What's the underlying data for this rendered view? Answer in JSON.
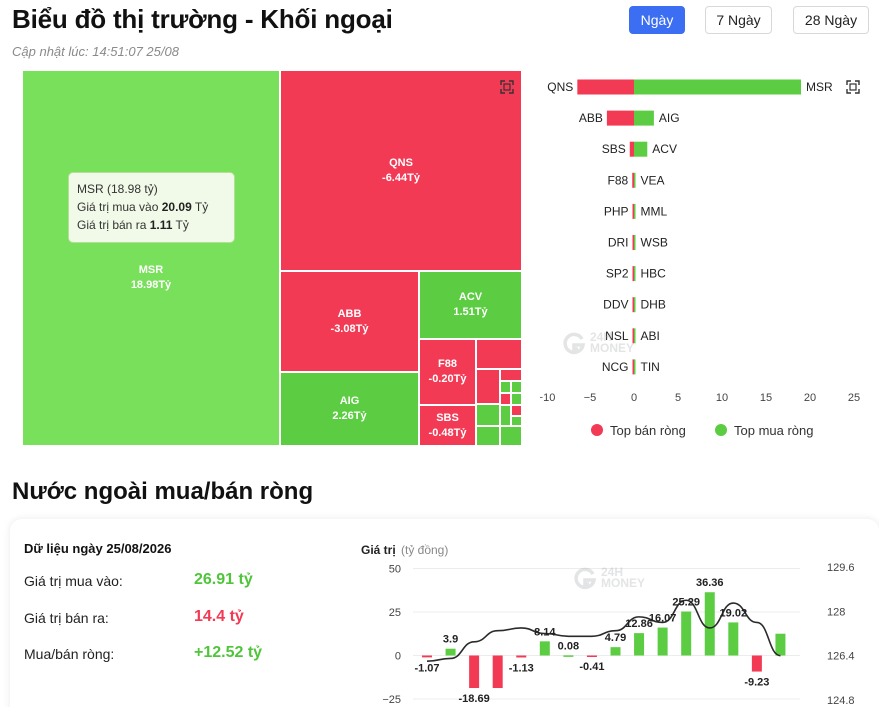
{
  "header": {
    "title": "Biểu đồ thị trường - Khối ngoại",
    "updated": "Cập nhật lúc: 14:51:07 25/08",
    "periods": [
      {
        "label": "Ngày",
        "active": true
      },
      {
        "label": "7 Ngày",
        "active": false
      },
      {
        "label": "28 Ngày",
        "active": false
      }
    ]
  },
  "watermark": {
    "line1": "24H",
    "line2": "MONEY"
  },
  "treemap": {
    "tiles": [
      {
        "code": "MSR",
        "value": "18.98Tỷ",
        "side": "buy"
      },
      {
        "code": "QNS",
        "value": "-6.44Tỷ",
        "side": "sell"
      },
      {
        "code": "ABB",
        "value": "-3.08Tỷ",
        "side": "sell"
      },
      {
        "code": "ACV",
        "value": "1.51Tỷ",
        "side": "buy"
      },
      {
        "code": "AIG",
        "value": "2.26Tỷ",
        "side": "buy"
      },
      {
        "code": "F88",
        "value": "-0.20Tỷ",
        "side": "sell"
      },
      {
        "code": "SBS",
        "value": "-0.48Tỷ",
        "side": "sell"
      }
    ],
    "tooltip": {
      "title": "MSR (18.98 tỷ)",
      "buy_label": "Giá trị mua vào",
      "buy_value": "20.09",
      "sell_label": "Giá trị bán ra",
      "sell_value": "1.11",
      "unit": "Tỷ"
    }
  },
  "chart_data": [
    {
      "type": "bar",
      "orientation": "horizontal",
      "sell_codes": [
        "QNS",
        "ABB",
        "SBS",
        "F88",
        "PHP",
        "DRI",
        "SP2",
        "DDV",
        "NSL",
        "NCG"
      ],
      "sell_values": [
        -6.44,
        -3.08,
        -0.48,
        -0.2,
        -0.1,
        -0.08,
        -0.06,
        -0.05,
        -0.04,
        -0.03
      ],
      "buy_codes": [
        "MSR",
        "AIG",
        "ACV",
        "VEA",
        "MML",
        "WSB",
        "HBC",
        "DHB",
        "ABI",
        "TIN"
      ],
      "buy_values": [
        18.98,
        2.26,
        1.51,
        0.15,
        0.1,
        0.08,
        0.06,
        0.05,
        0.04,
        0.03
      ],
      "xlim": [
        -10,
        25
      ],
      "xticks": [
        "−10",
        "−5",
        "0",
        "5",
        "10",
        "15",
        "20",
        "25"
      ],
      "legend": [
        {
          "name": "Top bán ròng",
          "color": "#f23a55"
        },
        {
          "name": "Top mua ròng",
          "color": "#5ccd43"
        }
      ],
      "legend_position": "bottom"
    },
    {
      "type": "bar+line",
      "title": "Giá trị",
      "unit": "(tỷ đồng)",
      "bar_values": [
        -1.07,
        3.9,
        -18.69,
        -18.69,
        -1.13,
        8.14,
        0.08,
        -0.41,
        4.79,
        12.86,
        16.07,
        25.29,
        36.36,
        19.02,
        -9.23,
        12.52
      ],
      "bar_labels": [
        "-1.07",
        "3.9",
        "-18.69",
        "",
        "-1.13",
        "8.14",
        "0.08",
        "-0.41",
        "4.79",
        "12.86",
        "16.07",
        "25.29",
        "36.36",
        "19.02",
        "-9.23",
        ""
      ],
      "line_values": [
        126.2,
        126.3,
        126.9,
        127.3,
        127.4,
        127.2,
        127.1,
        127.1,
        127.3,
        127.8,
        127.6,
        128.4,
        127.4,
        128.3,
        127.6,
        126.4
      ],
      "left_ticks": [
        "50",
        "25",
        "0",
        "−25"
      ],
      "left_range": [
        -25,
        50
      ],
      "right_ticks": [
        "129.6",
        "128",
        "126.4",
        "124.8"
      ],
      "right_range": [
        124.8,
        129.6
      ],
      "colors": {
        "positive": "#5ccd43",
        "negative": "#f23a55",
        "line": "#2b2b2b"
      }
    }
  ],
  "summary": {
    "date_label": "Dữ liệu ngày 25/08/2026",
    "buy_label": "Giá trị mua vào:",
    "buy_value": "26.91 tỷ",
    "sell_label": "Giá trị bán ra:",
    "sell_value": "14.4 tỷ",
    "net_label": "Mua/bán ròng:",
    "net_value": "+12.52 tỷ"
  },
  "section": {
    "title": "Nước ngoài mua/bán ròng"
  }
}
